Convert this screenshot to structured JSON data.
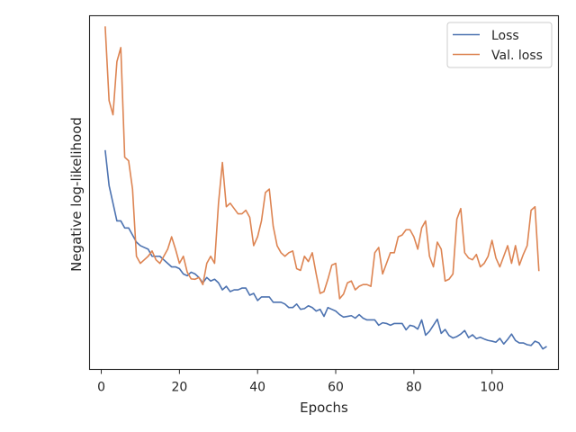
{
  "chart_data": {
    "type": "line",
    "title": "",
    "xlabel": "Epochs",
    "ylabel": "Negative log-likelihood",
    "xlim": [
      -3,
      117
    ],
    "ylim": [
      0,
      100
    ],
    "x_ticks": [
      0,
      20,
      40,
      60,
      80,
      100
    ],
    "y_tick_labels_shown": false,
    "grid": false,
    "legend_position": "top-right",
    "x_start": 1,
    "series": [
      {
        "name": "Loss",
        "color": "#4c72b0",
        "values": [
          62,
          52,
          47,
          42,
          42,
          40,
          40,
          38,
          36,
          35,
          34.5,
          34,
          32,
          32,
          32,
          31,
          30,
          29,
          29,
          28.5,
          27,
          26.5,
          27.5,
          27,
          26,
          24.5,
          26,
          25,
          25.5,
          24.5,
          22.5,
          23.5,
          22,
          22.5,
          22.5,
          23,
          23,
          21,
          21.5,
          19.5,
          20.5,
          20.5,
          20.5,
          19,
          19,
          19,
          18.5,
          17.5,
          17.5,
          18.5,
          17,
          17.2,
          18,
          17.5,
          16.5,
          17,
          15,
          17.5,
          17,
          16.5,
          15.5,
          14.8,
          15,
          15.2,
          14.5,
          15.5,
          14.5,
          14,
          14,
          14,
          12.5,
          13.2,
          13,
          12.5,
          13,
          13,
          13,
          11.2,
          12.5,
          12.2,
          11.4,
          14,
          9.7,
          10.8,
          12.5,
          14.2,
          10.2,
          11.3,
          9.6,
          8.9,
          9.3,
          10,
          11,
          9,
          9.8,
          8.7,
          9.1,
          8.6,
          8.2,
          8,
          7.7,
          8.8,
          7.2,
          8.5,
          10,
          8.2,
          7.5,
          7.5,
          7,
          6.8,
          8,
          7.5,
          5.8,
          6.5
        ]
      },
      {
        "name": "Val. loss",
        "color": "#dd8452",
        "values": [
          97,
          76,
          72,
          87,
          91,
          60,
          59,
          51,
          32,
          30,
          31,
          32,
          33.5,
          31,
          30,
          32,
          34,
          37.5,
          34,
          30,
          32,
          27.5,
          25.6,
          25.5,
          26,
          24,
          30,
          32,
          30,
          47,
          58.5,
          46,
          47,
          45.5,
          44,
          44,
          45,
          43,
          35,
          37.5,
          42,
          50,
          51,
          40.5,
          35,
          33,
          32,
          33,
          33.5,
          28.5,
          28,
          32,
          30.5,
          33,
          27,
          21.5,
          22,
          25.5,
          29.5,
          30,
          20,
          21.3,
          24.5,
          25,
          22.5,
          23.5,
          24,
          24,
          23.5,
          33,
          34.5,
          27,
          30,
          33,
          33,
          37.5,
          38,
          39.5,
          39.5,
          37.5,
          34,
          40,
          42,
          32,
          29,
          36,
          34,
          25,
          25.5,
          27,
          42.5,
          45.5,
          33,
          31.5,
          31,
          32.5,
          29,
          30,
          32,
          36.5,
          31.5,
          29,
          32,
          35,
          30,
          35,
          29.5,
          32.5,
          35,
          45,
          46,
          27.8
        ]
      }
    ]
  }
}
